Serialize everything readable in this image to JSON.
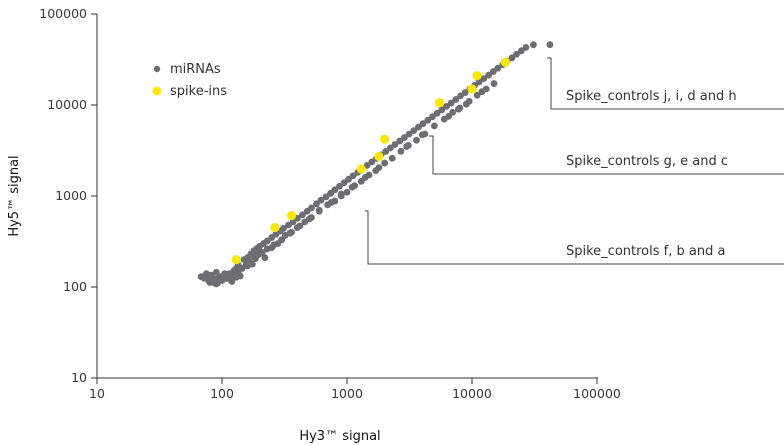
{
  "chart_data": {
    "type": "scatter",
    "title": "",
    "xlabel": "Hy3™ signal",
    "ylabel": "Hy5™ signal",
    "xscale": "log",
    "yscale": "log",
    "xlim": [
      10,
      100000
    ],
    "ylim": [
      10,
      100000
    ],
    "x_ticks": [
      10,
      100,
      1000,
      10000,
      100000
    ],
    "y_ticks": [
      10,
      100,
      1000,
      10000,
      100000
    ],
    "x_tick_labels": [
      "10",
      "100",
      "1000",
      "10000",
      "100000"
    ],
    "y_tick_labels": [
      "10",
      "100",
      "1000",
      "10000",
      "100000"
    ],
    "grid": false,
    "legend": {
      "placement": "top-left",
      "entries": [
        "miRNAs",
        "spike-ins"
      ]
    },
    "colors": {
      "miRNAs": "#6d6e71",
      "spike-ins": "#f5e70c"
    },
    "series": [
      {
        "name": "miRNAs",
        "x": [
          68,
          72,
          75,
          78,
          80,
          82,
          85,
          88,
          90,
          92,
          95,
          98,
          100,
          105,
          110,
          115,
          120,
          125,
          130,
          135,
          140,
          150,
          160,
          170,
          180,
          190,
          200,
          215,
          230,
          250,
          270,
          290,
          310,
          340,
          370,
          400,
          440,
          480,
          520,
          570,
          620,
          680,
          740,
          800,
          870,
          950,
          1030,
          1120,
          1220,
          1330,
          1450,
          1580,
          1720,
          1870,
          2040,
          2220,
          2420,
          2640,
          2880,
          3140,
          3420,
          3730,
          4060,
          4430,
          4830,
          5260,
          5730,
          6250,
          6810,
          7420,
          8090,
          8820,
          9610,
          10500,
          11400,
          12400,
          13600,
          14800,
          16100,
          17600,
          19100,
          20900,
          22700,
          24800,
          27000,
          31000,
          42000,
          80,
          85,
          90,
          95,
          100,
          110,
          120,
          130,
          140,
          160,
          180,
          200,
          220,
          250,
          280,
          320,
          360,
          400,
          460,
          520,
          600,
          700,
          800,
          900,
          1000,
          1150,
          1300,
          1500,
          1700,
          2000,
          2300,
          2700,
          3100,
          3600,
          4200,
          5000,
          6000,
          7000,
          8000,
          9000,
          11000,
          13000,
          15000,
          105,
          115,
          125,
          135,
          145,
          155,
          165,
          175,
          185,
          195,
          210,
          230,
          260,
          300,
          350,
          420,
          500,
          600,
          750,
          900,
          1100,
          1400,
          1800,
          2300,
          3000,
          4000,
          6500,
          7800,
          9500,
          12000
        ],
        "y": [
          130,
          125,
          140,
          118,
          128,
          135,
          112,
          122,
          145,
          110,
          120,
          130,
          118,
          128,
          124,
          140,
          135,
          150,
          160,
          175,
          160,
          200,
          210,
          230,
          250,
          265,
          280,
          300,
          320,
          350,
          380,
          410,
          440,
          480,
          520,
          570,
          620,
          680,
          740,
          820,
          900,
          980,
          1070,
          1170,
          1280,
          1400,
          1530,
          1670,
          1820,
          1990,
          2170,
          2370,
          2590,
          2830,
          3090,
          3370,
          3680,
          4020,
          4390,
          4790,
          5230,
          5710,
          6230,
          6800,
          7430,
          8110,
          8850,
          9660,
          10500,
          11500,
          12600,
          13700,
          15000,
          16400,
          17900,
          19500,
          21300,
          23300,
          25400,
          27700,
          30300,
          33000,
          36100,
          39400,
          43000,
          46000,
          46000,
          112,
          118,
          108,
          125,
          122,
          138,
          115,
          128,
          132,
          170,
          215,
          245,
          210,
          270,
          300,
          370,
          400,
          450,
          520,
          580,
          700,
          800,
          880,
          1000,
          1100,
          1300,
          1450,
          1700,
          1900,
          2300,
          2600,
          3100,
          3600,
          4100,
          4800,
          5900,
          7000,
          8300,
          9300,
          10200,
          12800,
          15000,
          17200,
          140,
          132,
          152,
          144,
          160,
          172,
          190,
          178,
          205,
          226,
          240,
          262,
          290,
          330,
          390,
          470,
          560,
          680,
          850,
          1050,
          1250,
          1600,
          2050,
          2600,
          3500,
          4700,
          7500,
          9000,
          11000,
          14000
        ]
      },
      {
        "name": "spike-ins",
        "x": [
          130,
          265,
          360,
          1300,
          1800,
          2000,
          5500,
          10000,
          11000,
          18500
        ],
        "y": [
          200,
          450,
          610,
          1980,
          2720,
          4200,
          10600,
          15000,
          21000,
          29500
        ]
      }
    ],
    "annotations": [
      "Spike_controls j, i, d and h",
      "Spike_controls g, e and c",
      "Spike_controls f, b and a"
    ]
  }
}
